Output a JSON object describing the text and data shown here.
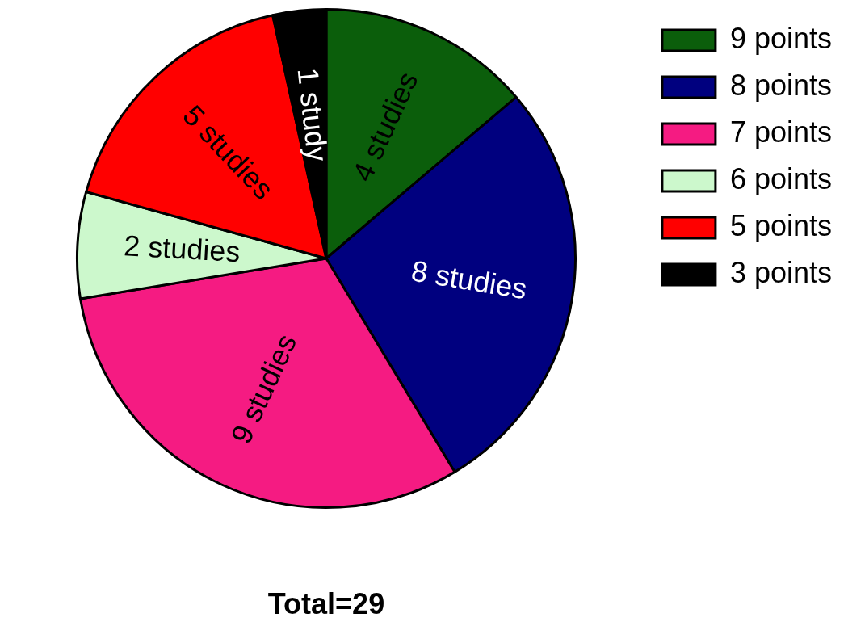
{
  "chart_data": {
    "type": "pie",
    "categories": [
      "9 points",
      "8 points",
      "7 points",
      "6 points",
      "5 points",
      "3 points"
    ],
    "values": [
      4,
      8,
      9,
      2,
      5,
      1
    ],
    "colors": [
      "#0b5e0b",
      "#00007f",
      "#f51b82",
      "#ccf8cc",
      "#ff0000",
      "#000000"
    ],
    "value_labels": [
      "4 studies",
      "8 studies",
      "9 studies",
      "2 studies",
      "5 studies",
      "1 study"
    ],
    "legend": "top right",
    "annotations": [
      "Total=29"
    ]
  }
}
